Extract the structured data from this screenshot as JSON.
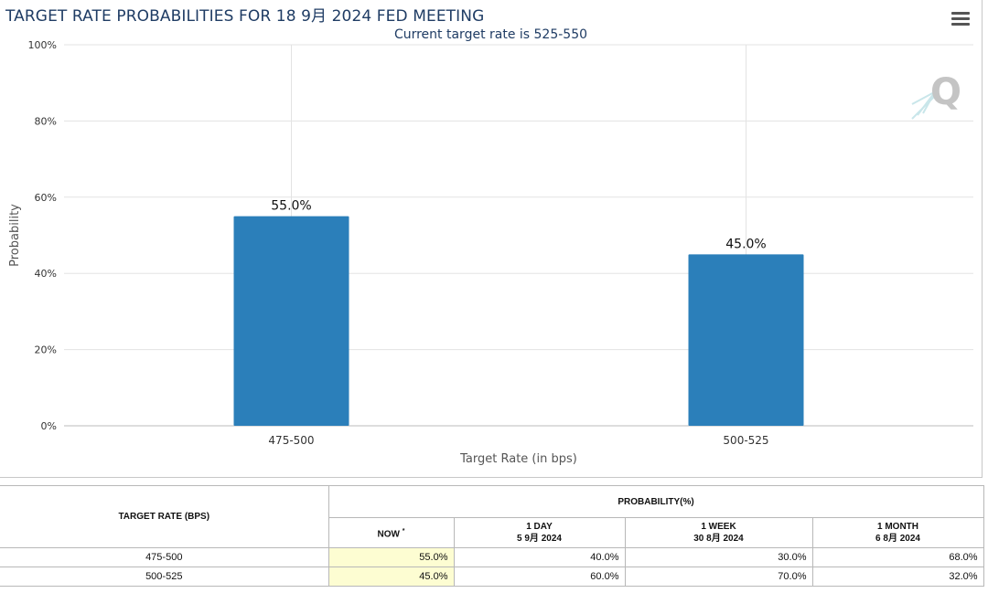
{
  "chart_data": {
    "type": "bar",
    "title": "TARGET RATE PROBABILITIES FOR 18 9月 2024 FED MEETING",
    "subtitle": "Current target rate is 525-550",
    "categories": [
      "475-500",
      "500-525"
    ],
    "values": [
      55.0,
      45.0
    ],
    "data_labels": [
      "55.0%",
      "45.0%"
    ],
    "xlabel": "Target Rate (in bps)",
    "ylabel": "Probability",
    "ylim": [
      0,
      100
    ],
    "yticks": [
      "0%",
      "20%",
      "40%",
      "60%",
      "80%",
      "100%"
    ],
    "bar_color": "#2b7fba",
    "grid": true
  },
  "menu_icon": "hamburger-menu-icon",
  "watermark": "Q",
  "table": {
    "header_rate": "TARGET RATE (BPS)",
    "header_prob": "PROBABILITY(%)",
    "columns": [
      {
        "line1": "NOW",
        "line2": "*"
      },
      {
        "line1": "1 DAY",
        "line2": "5 9月 2024"
      },
      {
        "line1": "1 WEEK",
        "line2": "30 8月 2024"
      },
      {
        "line1": "1 MONTH",
        "line2": "6 8月 2024"
      }
    ],
    "rows": [
      {
        "rate": "475-500",
        "now": "55.0%",
        "day": "40.0%",
        "week": "30.0%",
        "month": "68.0%"
      },
      {
        "rate": "500-525",
        "now": "45.0%",
        "day": "60.0%",
        "week": "70.0%",
        "month": "32.0%"
      }
    ]
  }
}
